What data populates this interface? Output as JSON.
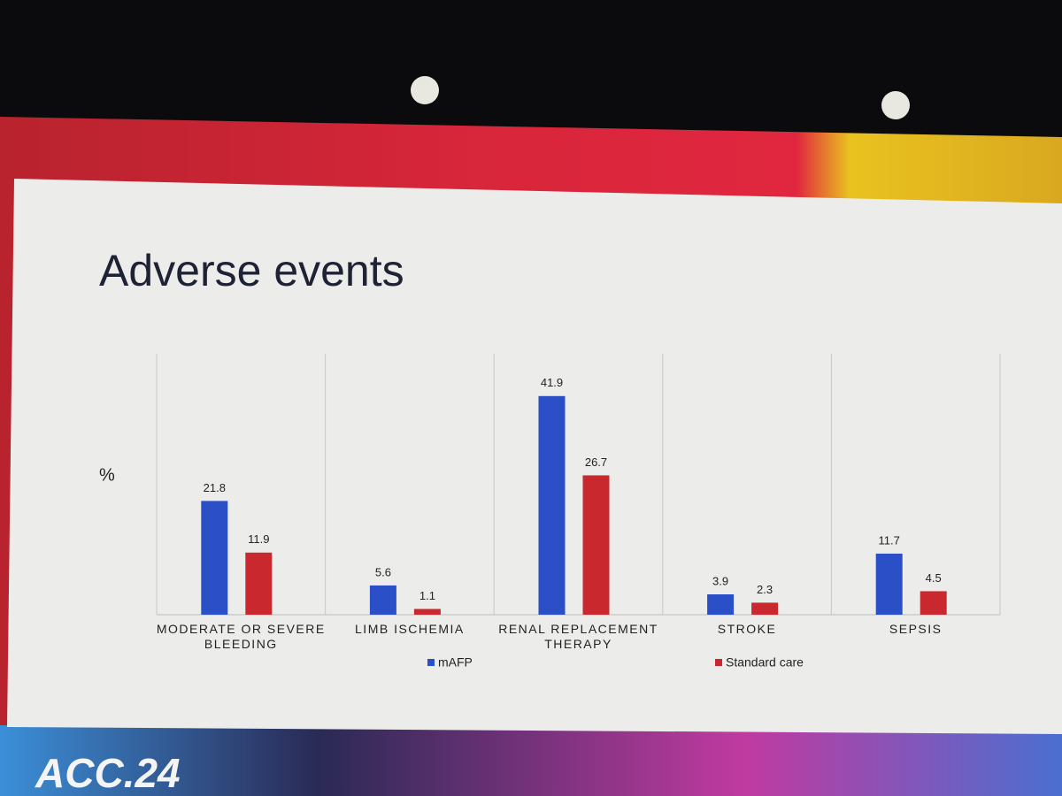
{
  "brand": "ACC.24",
  "chart_data": {
    "type": "bar",
    "title": "Adverse events",
    "ylabel": "%",
    "categories": [
      "MODERATE OR SEVERE BLEEDING",
      "LIMB ISCHEMIA",
      "RENAL REPLACEMENT THERAPY",
      "STROKE",
      "SEPSIS"
    ],
    "series": [
      {
        "name": "mAFP",
        "color": "#2b4fc7",
        "values": [
          21.8,
          5.6,
          41.9,
          3.9,
          11.7
        ]
      },
      {
        "name": "Standard care",
        "color": "#c8282e",
        "values": [
          11.9,
          1.1,
          26.7,
          2.3,
          4.5
        ]
      }
    ],
    "ylim": [
      0,
      50
    ],
    "legend": "bottom"
  }
}
